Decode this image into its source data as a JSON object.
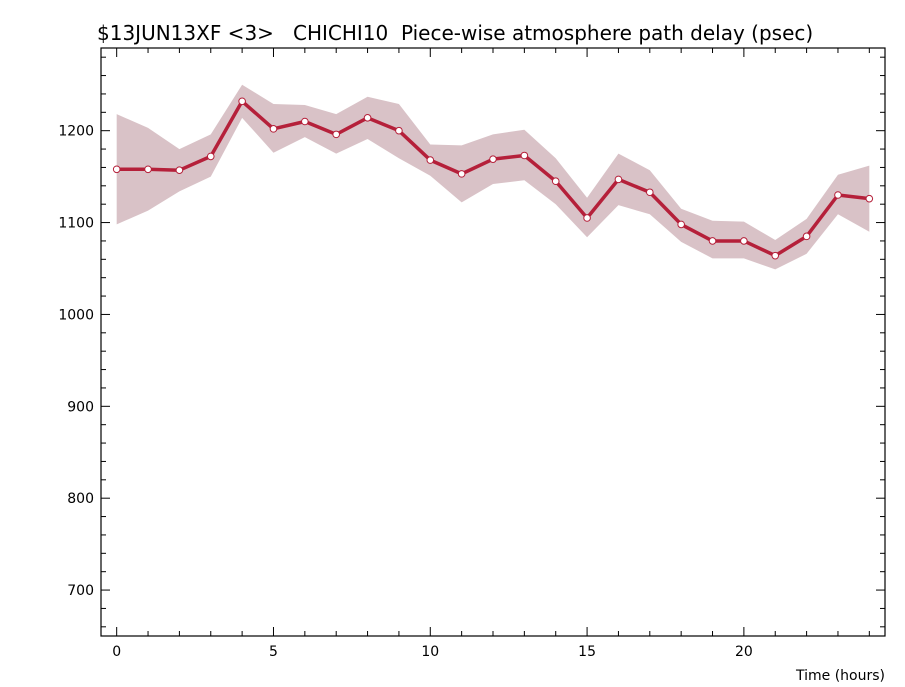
{
  "chart_data": {
    "type": "line",
    "title": "$13JUN13XF <3>   CHICHI10  Piece-wise atmosphere path delay (psec)",
    "xlabel": "Time (hours)",
    "ylabel": "",
    "xlim": [
      -0.5,
      24.5
    ],
    "ylim": [
      650,
      1290
    ],
    "x_ticks": [
      0,
      5,
      10,
      15,
      20
    ],
    "y_ticks": [
      700,
      800,
      900,
      1000,
      1100,
      1200
    ],
    "grid": false,
    "series": [
      {
        "x": [
          0,
          1,
          2,
          3,
          4,
          5,
          6,
          7,
          8,
          9,
          10,
          11,
          12,
          13,
          14,
          15,
          16,
          17,
          18,
          19,
          20,
          21,
          22,
          23,
          24
        ],
        "values": [
          1158,
          1158,
          1157,
          1172,
          1232,
          1202,
          1210,
          1196,
          1214,
          1200,
          1168,
          1153,
          1169,
          1173,
          1145,
          1105,
          1147,
          1133,
          1098,
          1080,
          1080,
          1064,
          1085,
          1130,
          1126
        ],
        "upper": [
          1218,
          1203,
          1180,
          1196,
          1250,
          1229,
          1228,
          1218,
          1237,
          1229,
          1185,
          1184,
          1196,
          1201,
          1170,
          1127,
          1175,
          1157,
          1115,
          1102,
          1101,
          1081,
          1104,
          1152,
          1162
        ],
        "lower": [
          1098,
          1113,
          1134,
          1150,
          1214,
          1176,
          1193,
          1175,
          1191,
          1170,
          1151,
          1122,
          1142,
          1146,
          1120,
          1084,
          1119,
          1109,
          1079,
          1061,
          1061,
          1049,
          1066,
          1109,
          1090
        ]
      }
    ],
    "colors": {
      "line": "#b5203a",
      "band": "#d9c2c7",
      "marker_fill": "#ffffff",
      "axis": "#000000"
    }
  }
}
